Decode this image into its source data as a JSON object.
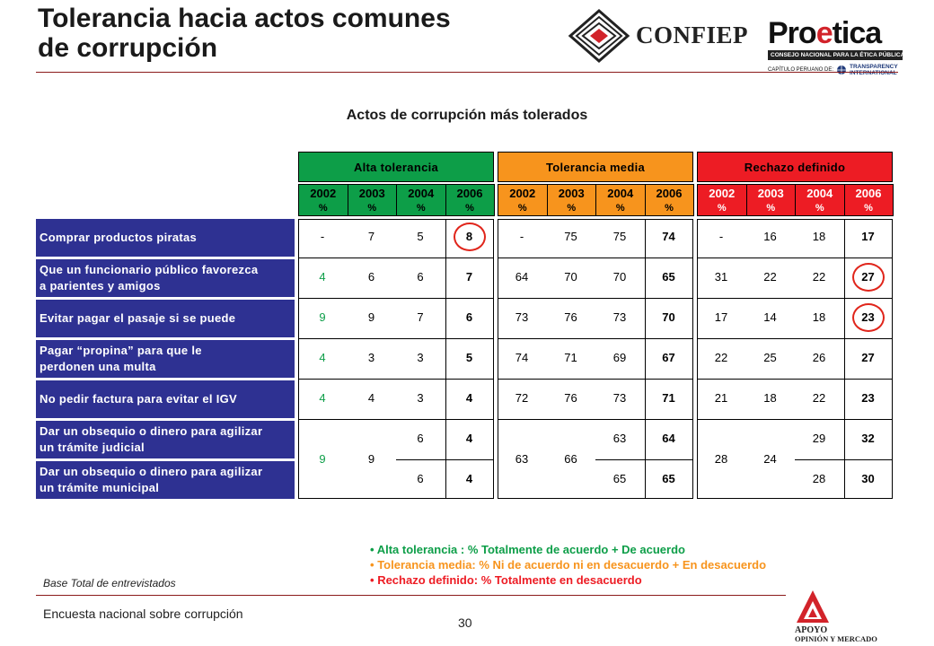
{
  "header": {
    "title_line1": "Tolerancia hacia actos comunes",
    "title_line2": "de corrupción",
    "logo_confiep": "CONFIEP",
    "logo_proetica_pre": "Pro",
    "logo_proetica_e": "e",
    "logo_proetica_post": "tica",
    "logo_proetica_bar": "CONSEJO NACIONAL PARA LA ÉTICA PÚBLICA",
    "logo_proetica_sub": "CAPÍTULO PERUANO DE:",
    "logo_ti_line1": "TRANSPARENCY",
    "logo_ti_line2": "INTERNATIONAL"
  },
  "subtitle": "Actos de corrupción más tolerados",
  "groups": [
    {
      "label": "Alta tolerancia",
      "color": "#0d9e48",
      "text_color": "#000000",
      "year_text_color": "#000000"
    },
    {
      "label": "Tolerancia media",
      "color": "#f7941d",
      "text_color": "#000000",
      "year_text_color": "#000000"
    },
    {
      "label": "Rechazo definido",
      "color": "#ed1c24",
      "text_color": "#000000",
      "year_text_color": "#ffffff"
    }
  ],
  "years": [
    "2002",
    "2003",
    "2004",
    "2006"
  ],
  "pct": "%",
  "rows": [
    "Comprar productos piratas",
    "Que un funcionario público favorezca\na parientes y amigos",
    "Evitar pagar el pasaje si se puede",
    "Pagar “propina” para que le\nperdonen una multa",
    "No pedir factura para evitar el IGV",
    "Dar un obsequio o dinero para agilizar\n un trámite judicial",
    "Dar un obsequio o dinero para agilizar\nun trámite municipal"
  ],
  "alta": {
    "y2002": [
      "-",
      "4",
      "9",
      "4",
      "4",
      "9"
    ],
    "y2003": [
      "7",
      "6",
      "9",
      "3",
      "4",
      "9"
    ],
    "y2004": [
      "5",
      "6",
      "7",
      "3",
      "3",
      "6",
      "6"
    ],
    "y2006": [
      "8",
      "7",
      "6",
      "5",
      "4",
      "4",
      "4"
    ]
  },
  "media": {
    "y2002": [
      "-",
      "64",
      "73",
      "74",
      "72",
      "63"
    ],
    "y2003": [
      "75",
      "70",
      "76",
      "71",
      "76",
      "66"
    ],
    "y2004": [
      "75",
      "70",
      "73",
      "69",
      "73",
      "63",
      "65"
    ],
    "y2006": [
      "74",
      "65",
      "70",
      "67",
      "71",
      "64",
      "65"
    ]
  },
  "rechazo": {
    "y2002": [
      "-",
      "31",
      "17",
      "22",
      "21",
      "28"
    ],
    "y2003": [
      "16",
      "22",
      "14",
      "25",
      "18",
      "24"
    ],
    "y2004": [
      "18",
      "22",
      "18",
      "26",
      "22",
      "29",
      "28"
    ],
    "y2006": [
      "17",
      "27",
      "23",
      "27",
      "23",
      "32",
      "30"
    ]
  },
  "value_colors": {
    "green": "#0d9e48",
    "black": "#000000"
  },
  "legend": {
    "alta": "Alta tolerancia : % Totalmente de acuerdo + De acuerdo",
    "media": "Tolerancia media: % Ni de acuerdo ni en desacuerdo + En desacuerdo",
    "rechazo": "Rechazo definido: % Totalmente en desacuerdo",
    "bullet": "•"
  },
  "footer": {
    "base": "Base Total de entrevistados",
    "survey": "Encuesta nacional sobre corrupción",
    "page": "30",
    "apoyo_line1": "APOYO",
    "apoyo_line2": "OPINIÓN Y MERCADO"
  }
}
